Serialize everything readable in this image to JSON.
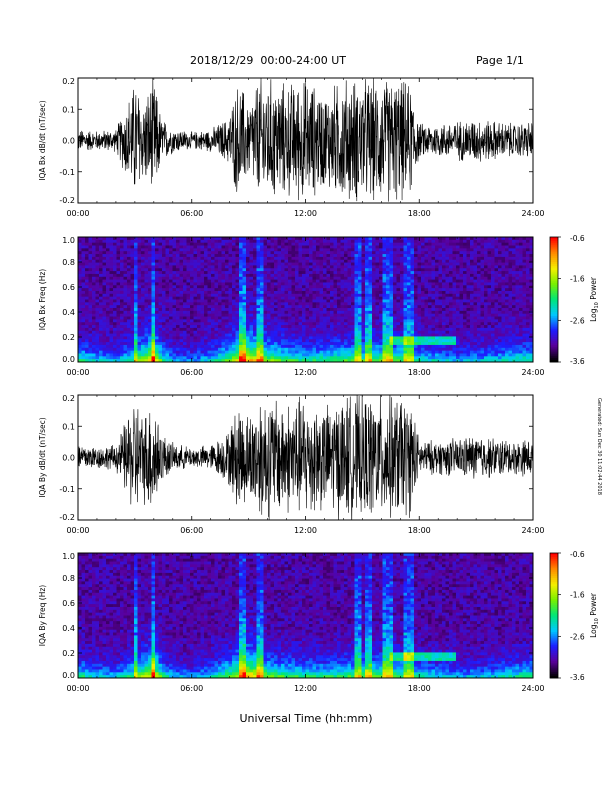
{
  "header": {
    "title": "2018/12/29  00:00-24:00 UT",
    "page": "Page 1/1"
  },
  "footer": {
    "xlabel": "Universal Time (hh:mm)",
    "side_note": "Generated: Sun Dec 30 11:02:44 2018"
  },
  "colorbar": {
    "title_prefix": "Log",
    "title_sub": "10",
    "title_suffix": " Power",
    "ticks": [
      "-0.6",
      "-1.6",
      "-2.6",
      "-3.6"
    ],
    "colors": [
      "#000000",
      "#5a009c",
      "#1d1dff",
      "#00c8ff",
      "#00e678",
      "#78f000",
      "#f5f000",
      "#ff8c00",
      "#ff0000"
    ]
  },
  "chart_data": [
    {
      "type": "line",
      "panel": "bx-waveform",
      "ylabel": "IQA Bx dB/dt (nT/sec)",
      "x_ticks": [
        "00:00",
        "06:00",
        "12:00",
        "18:00",
        "24:00"
      ],
      "y_ticks": [
        "0.2",
        "0.1",
        "0.0",
        "-0.1",
        "-0.2"
      ],
      "xlim": [
        0,
        24
      ],
      "ylim": [
        -0.2,
        0.2
      ],
      "x_unit": "hours UT",
      "envelope": {
        "hours": [
          0,
          1,
          2,
          3.05,
          3.4,
          4.0,
          4.4,
          5,
          6,
          7,
          7.9,
          8.5,
          9,
          9.5,
          10,
          11,
          12,
          13,
          14,
          15,
          16,
          17,
          17.6,
          18,
          19,
          20,
          21,
          22,
          23,
          24
        ],
        "amplitude": [
          0.04,
          0.035,
          0.04,
          0.22,
          0.14,
          0.22,
          0.08,
          0.045,
          0.03,
          0.04,
          0.08,
          0.22,
          0.13,
          0.22,
          0.22,
          0.2,
          0.22,
          0.17,
          0.22,
          0.22,
          0.22,
          0.22,
          0.19,
          0.06,
          0.06,
          0.07,
          0.08,
          0.07,
          0.06,
          0.07
        ]
      }
    },
    {
      "type": "heatmap",
      "panel": "bx-spectrogram",
      "ylabel": "IQA Bx Freq (Hz)",
      "x_ticks": [
        "00:00",
        "06:00",
        "12:00",
        "18:00",
        "24:00"
      ],
      "y_ticks": [
        "1.0",
        "0.8",
        "0.6",
        "0.4",
        "0.2",
        "0.0"
      ],
      "xlim": [
        0,
        24
      ],
      "ylim": [
        0,
        1.0
      ],
      "z_label": "Log10 Power",
      "zlim": [
        -3.6,
        -0.6
      ],
      "low_freq_activity": {
        "hours": [
          0,
          1,
          2,
          3,
          3.5,
          4,
          4.5,
          5,
          6,
          7,
          8,
          8.5,
          9,
          9.5,
          10,
          11,
          12,
          13,
          14,
          15,
          16,
          17,
          18,
          19,
          20,
          21,
          22,
          23,
          24
        ],
        "level": [
          0.45,
          0.35,
          0.3,
          0.5,
          0.65,
          0.8,
          0.45,
          0.3,
          0.25,
          0.35,
          0.55,
          0.75,
          0.85,
          0.7,
          0.6,
          0.5,
          0.45,
          0.45,
          0.5,
          0.5,
          0.55,
          0.5,
          0.4,
          0.35,
          0.3,
          0.3,
          0.35,
          0.4,
          0.45
        ]
      },
      "vertical_streaks_hours": [
        3.05,
        4.0,
        8.7,
        9.6,
        14.8,
        15.3,
        16.2,
        16.5,
        17.4,
        17.6
      ]
    },
    {
      "type": "line",
      "panel": "by-waveform",
      "ylabel": "IQA By dB/dt (nT/sec)",
      "x_ticks": [
        "00:00",
        "06:00",
        "12:00",
        "18:00",
        "24:00"
      ],
      "y_ticks": [
        "0.2",
        "0.1",
        "0.0",
        "-0.1",
        "-0.2"
      ],
      "xlim": [
        0,
        24
      ],
      "ylim": [
        -0.2,
        0.2
      ],
      "x_unit": "hours UT",
      "envelope": {
        "hours": [
          0,
          1,
          2,
          3.05,
          3.4,
          4.0,
          4.4,
          5,
          6,
          7,
          7.9,
          8.5,
          9,
          9.5,
          10,
          11,
          12,
          13,
          14,
          15,
          16,
          17,
          17.6,
          18,
          19,
          20,
          21,
          22,
          23,
          24
        ],
        "amplitude": [
          0.05,
          0.04,
          0.045,
          0.22,
          0.15,
          0.22,
          0.09,
          0.05,
          0.035,
          0.045,
          0.09,
          0.2,
          0.15,
          0.22,
          0.22,
          0.2,
          0.22,
          0.18,
          0.22,
          0.22,
          0.22,
          0.22,
          0.2,
          0.06,
          0.06,
          0.07,
          0.08,
          0.07,
          0.06,
          0.07
        ]
      }
    },
    {
      "type": "heatmap",
      "panel": "by-spectrogram",
      "ylabel": "IQA By Freq (Hz)",
      "x_ticks": [
        "00:00",
        "06:00",
        "12:00",
        "18:00",
        "24:00"
      ],
      "y_ticks": [
        "1.0",
        "0.8",
        "0.6",
        "0.4",
        "0.2",
        "0.0"
      ],
      "xlim": [
        0,
        24
      ],
      "ylim": [
        0,
        1.0
      ],
      "z_label": "Log10 Power",
      "zlim": [
        -3.6,
        -0.6
      ],
      "low_freq_activity": {
        "hours": [
          0,
          1,
          2,
          3,
          3.5,
          4,
          4.5,
          5,
          6,
          7,
          8,
          8.5,
          9,
          9.5,
          10,
          11,
          12,
          13,
          14,
          15,
          16,
          17,
          18,
          19,
          20,
          21,
          22,
          23,
          24
        ],
        "level": [
          0.45,
          0.35,
          0.3,
          0.5,
          0.65,
          0.8,
          0.45,
          0.3,
          0.25,
          0.35,
          0.55,
          0.7,
          0.85,
          0.7,
          0.55,
          0.5,
          0.45,
          0.45,
          0.5,
          0.5,
          0.55,
          0.5,
          0.4,
          0.35,
          0.3,
          0.3,
          0.35,
          0.4,
          0.45
        ]
      },
      "vertical_streaks_hours": [
        3.05,
        4.0,
        8.7,
        9.6,
        14.8,
        15.3,
        16.2,
        16.5,
        17.4,
        17.6
      ]
    }
  ]
}
